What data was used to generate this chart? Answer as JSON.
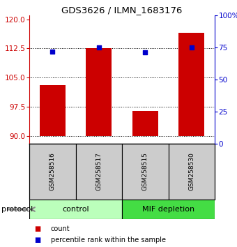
{
  "title": "GDS3626 / ILMN_1683176",
  "samples": [
    "GSM258516",
    "GSM258517",
    "GSM258515",
    "GSM258530"
  ],
  "bar_values": [
    103.0,
    112.5,
    96.5,
    116.5
  ],
  "bar_base": 90,
  "percentile_values": [
    72,
    75,
    71,
    75
  ],
  "bar_color": "#cc0000",
  "percentile_color": "#0000cc",
  "ylim_left": [
    88,
    121
  ],
  "ylim_right": [
    0,
    100
  ],
  "yticks_left": [
    90,
    97.5,
    105,
    112.5,
    120
  ],
  "yticks_right": [
    0,
    25,
    50,
    75,
    100
  ],
  "ytick_labels_right": [
    "0",
    "25",
    "50",
    "75",
    "100%"
  ],
  "groups": [
    {
      "label": "control",
      "samples": [
        0,
        1
      ],
      "color": "#bbffbb"
    },
    {
      "label": "MIF depletion",
      "samples": [
        2,
        3
      ],
      "color": "#44dd44"
    }
  ],
  "protocol_label": "protocol",
  "legend_count_label": "count",
  "legend_pct_label": "percentile rank within the sample",
  "sample_box_color": "#cccccc",
  "bar_width": 0.55,
  "plot_bg": "#ffffff"
}
